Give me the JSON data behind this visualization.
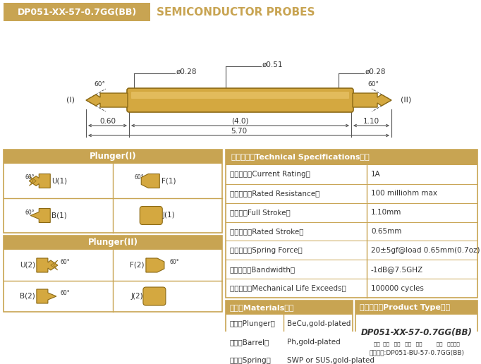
{
  "title_box_text": "DP051-XX-57-0.7GG(BB)",
  "title_main": "SEMICONDUCTOR PROBES",
  "bg_color": "#ffffff",
  "gold_color": "#C8A452",
  "gold_dark": "#A07828",
  "gold_barrel": "#D4A840",
  "gold_barrel_edge": "#8B6914",
  "text_dark": "#333333",
  "text_white": "#ffffff",
  "dim_d028_left": "ø0.28",
  "dim_d051": "ø0.51",
  "dim_d028_right": "ø0.28",
  "dim_060": "0.60",
  "dim_40": "(4.0)",
  "dim_110": "1.10",
  "dim_570": "5.70",
  "label_I": "(I)",
  "label_II": "(II)",
  "angle_60": "60°",
  "spec_header": "技术要求（Technical Specifications）：",
  "specs": [
    [
      "额定电流（Current Rating）",
      "1A"
    ],
    [
      "额定电阔（Rated Resistance）",
      "100 milliohm max"
    ],
    [
      "满行程（Full Stroke）",
      "1.10mm"
    ],
    [
      "额定行程（Rated Stroke）",
      "0.65mm"
    ],
    [
      "额定弹力（Spring Force）",
      "20±5gf@load 0.65mm(0.7oz)"
    ],
    [
      "频率带宽（Bandwidth）",
      "-1dB@7.5GHZ"
    ],
    [
      "测试寿命（Mechanical Life Exceeds）",
      "100000 cycles"
    ]
  ],
  "mat_header": "材质（Materials）：",
  "materials": [
    [
      "针头（Plunger）",
      "BeCu,gold-plated"
    ],
    [
      "针管（Barrel）",
      "Ph,gold-plated"
    ],
    [
      "弹簧（Spring）",
      "SWP or SUS,gold-plated"
    ]
  ],
  "pt_header": "成品型号（Product Type）：",
  "pt_code": "DP051-XX-57-0.7GG(BB)",
  "pt_labels": "系列  规格   头型   总长   弹力         镌金   针头材质",
  "pt_order": "订购举例:DP051-BU-57-0.7GG(BB)",
  "p1_header": "Plunger(I)",
  "p2_header": "Plunger(II)",
  "p1_labels": [
    "U(1)",
    "F(1)",
    "B(1)",
    "J(1)"
  ],
  "p2_labels": [
    "U(2)",
    "F(2)",
    "B(2)",
    "J(2)"
  ]
}
